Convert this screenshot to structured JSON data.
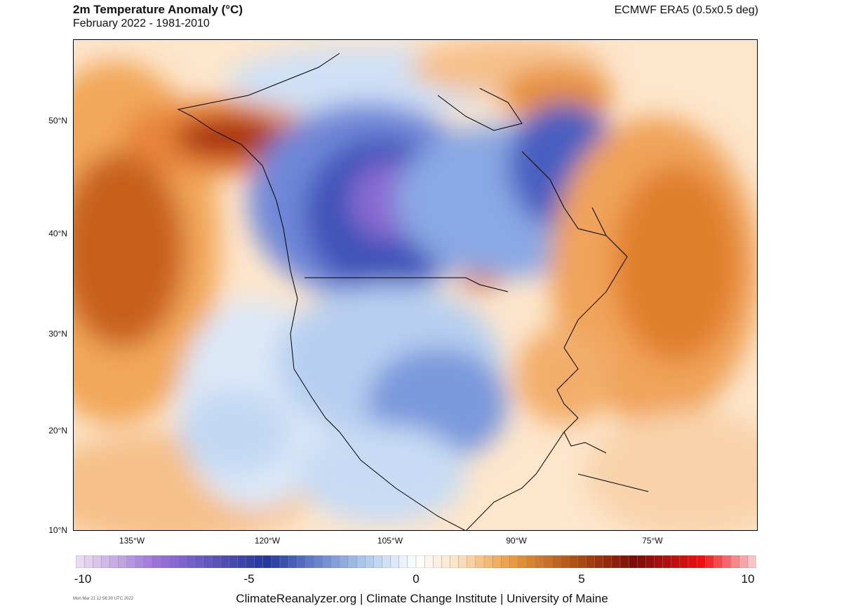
{
  "header": {
    "title": "2m Temperature Anomaly (°C)",
    "subtitle": "February 2022 - 1981-2010",
    "dataset": "ECMWF ERA5 (0.5x0.5 deg)"
  },
  "axes": {
    "lat_labels": [
      "50°N",
      "40°N",
      "30°N",
      "20°N",
      "10°N"
    ],
    "lon_labels": [
      "135°W",
      "120°W",
      "105°W",
      "90°W",
      "75°W"
    ]
  },
  "colorbar": {
    "tick_labels": [
      "-10",
      "-5",
      "0",
      "5",
      "10"
    ],
    "range": [
      -10,
      10
    ],
    "colors": {
      "cold_extreme": "#f0e0f5",
      "violet": "#9a72d8",
      "deep_blue": "#2236a0",
      "light_blue": "#a9c6ec",
      "neutral": "#ffffff",
      "light_orange": "#fbe3c7",
      "orange": "#ef9a39",
      "brown": "#a84a15",
      "dark_red": "#7e0a06",
      "red": "#ee1111",
      "warm_extreme": "#f8d4d8"
    }
  },
  "footer": {
    "timestamp": "Mon Mar 21 12:56:30 UTC 2022",
    "credit": "ClimateReanalyzer.org | Climate Change Institute | University of Maine"
  }
}
